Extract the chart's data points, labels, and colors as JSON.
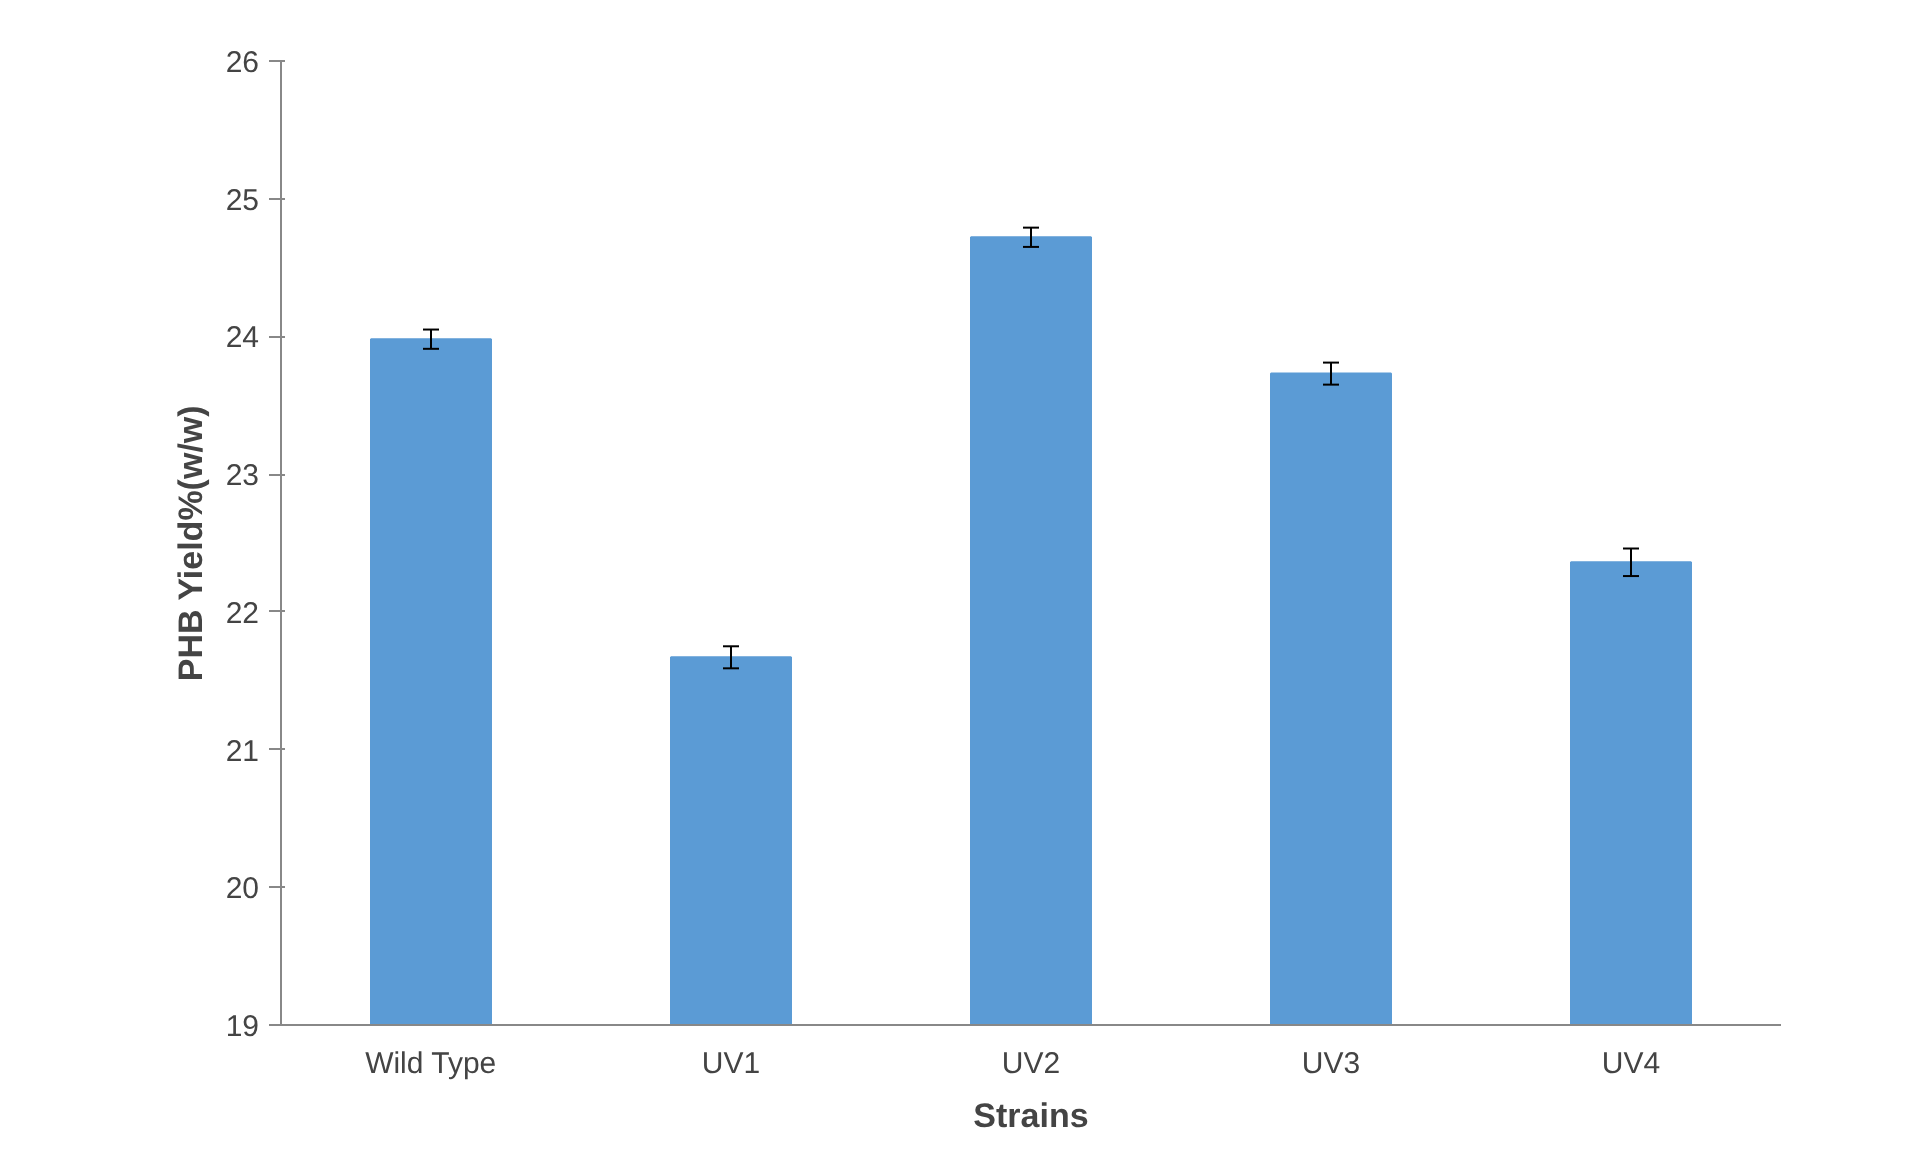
{
  "chart_data": {
    "type": "bar",
    "xlabel": "Strains",
    "ylabel": "PHB Yield%(w/w)",
    "categories": [
      "Wild Type",
      "UV1",
      "UV2",
      "UV3",
      "UV4"
    ],
    "values": [
      23.98,
      21.67,
      24.72,
      23.73,
      22.36
    ],
    "errors": [
      0.07,
      0.08,
      0.07,
      0.08,
      0.1
    ],
    "color": "#5b9bd5",
    "ylim": [
      19,
      26
    ],
    "yticks": [
      19,
      20,
      21,
      22,
      23,
      24,
      25,
      26
    ],
    "grid": false
  }
}
